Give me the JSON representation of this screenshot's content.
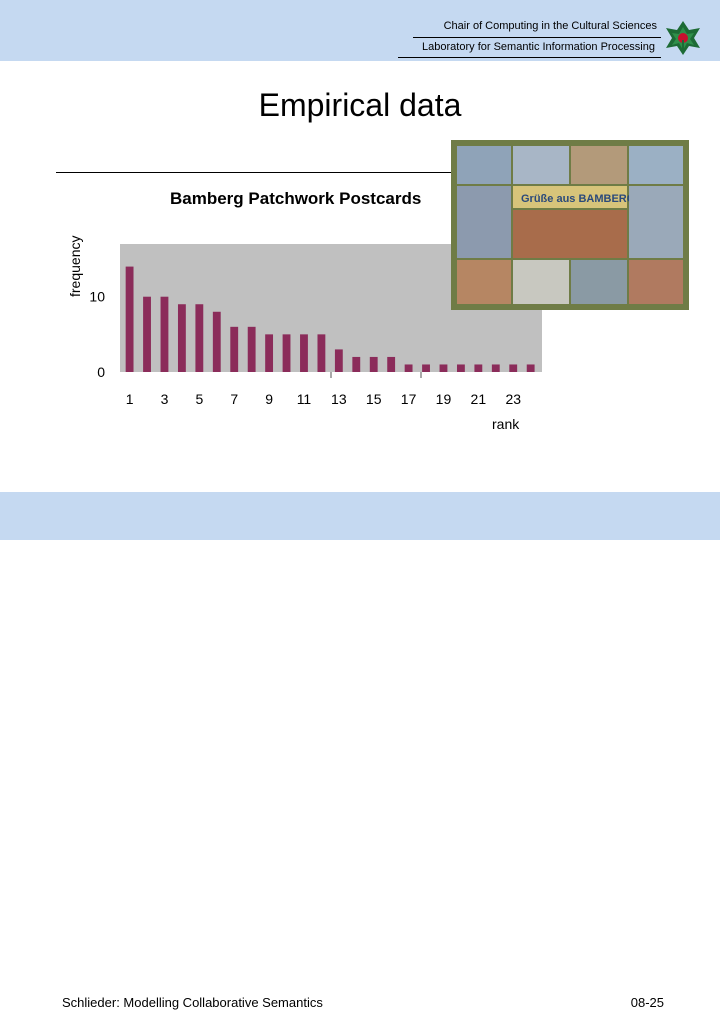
{
  "header": {
    "line1": "Chair of Computing in the Cultural Sciences",
    "line2": "Laboratory for Semantic Information Processing"
  },
  "slide": {
    "title": "Empirical data"
  },
  "chart_data": {
    "type": "bar",
    "title": "Bamberg Patchwork Postcards",
    "xlabel": "rank",
    "ylabel": "frequency",
    "x": [
      1,
      2,
      3,
      4,
      5,
      6,
      7,
      8,
      9,
      10,
      11,
      12,
      13,
      14,
      15,
      16,
      17,
      18,
      19,
      20,
      21,
      22,
      23,
      24
    ],
    "values": [
      14,
      10,
      10,
      9,
      9,
      8,
      6,
      6,
      5,
      5,
      5,
      5,
      3,
      2,
      2,
      2,
      1,
      1,
      1,
      1,
      1,
      1,
      1,
      1
    ],
    "x_tick_labels": [
      "1",
      "3",
      "5",
      "7",
      "9",
      "11",
      "13",
      "15",
      "17",
      "19",
      "21",
      "23"
    ],
    "y_tick_labels": [
      "0",
      "10"
    ],
    "y_ticks": [
      0,
      10
    ],
    "ylim": [
      0,
      17
    ],
    "bar_color": "#8b2c5a",
    "plot_background": "#c0c0c0",
    "grid": false
  },
  "postcard": {
    "header_text": "Grüße aus BAMBERG"
  },
  "footer": {
    "left": "Schlieder: Modelling Collaborative Semantics",
    "right": "08-25"
  }
}
